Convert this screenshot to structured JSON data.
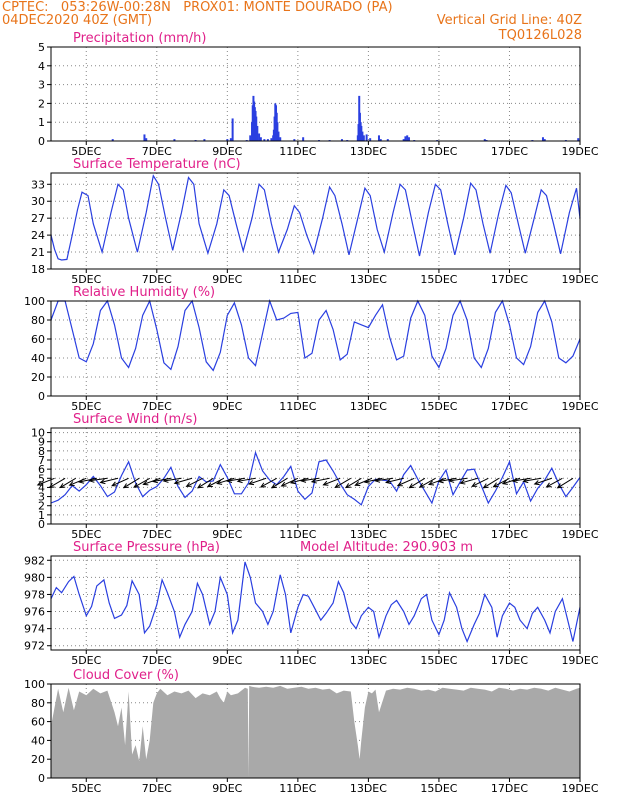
{
  "header": {
    "line1_left": "CPTEC:   053:26W-00:28N   PROX01: MONTE DOURADO (PA)",
    "line2_left": "04DEC2020 40Z (GMT)",
    "line2_right": "Vertical Grid Line: 40Z",
    "line3_right": "TQ0126L028"
  },
  "colors": {
    "header": "#e8741a",
    "title": "#e0208a",
    "series": "#2a3fe0",
    "cloud": "#a9a9a9",
    "wind_arrow": "#000000"
  },
  "time_axis": {
    "start": "04DEC2020 00Z",
    "end": "19DEC2020 00Z",
    "tick_labels": [
      "5DEC",
      "7DEC",
      "9DEC",
      "11DEC",
      "13DEC",
      "15DEC",
      "17DEC",
      "19DEC"
    ],
    "tick_days": [
      5,
      7,
      9,
      11,
      13,
      15,
      17,
      19
    ]
  },
  "model_altitude_text": "Model Altitude: 290.903 m",
  "chart_data": [
    {
      "type": "bar",
      "title": "Precipitation (mm/h)",
      "ylim": [
        0,
        5
      ],
      "yticks": [
        0,
        1,
        2,
        3,
        4,
        5
      ],
      "grid": true,
      "points": [
        [
          5.75,
          0.1
        ],
        [
          6.65,
          0.35
        ],
        [
          6.7,
          0.15
        ],
        [
          7.5,
          0.1
        ],
        [
          8.1,
          0.05
        ],
        [
          8.35,
          0.1
        ],
        [
          9.0,
          0.1
        ],
        [
          9.1,
          0.15
        ],
        [
          9.15,
          1.2
        ],
        [
          9.55,
          0.05
        ],
        [
          9.65,
          0.3
        ],
        [
          9.7,
          1.0
        ],
        [
          9.72,
          1.9
        ],
        [
          9.74,
          2.4
        ],
        [
          9.76,
          2.1
        ],
        [
          9.78,
          1.8
        ],
        [
          9.8,
          1.6
        ],
        [
          9.82,
          1.3
        ],
        [
          9.85,
          0.8
        ],
        [
          9.9,
          0.4
        ],
        [
          9.95,
          0.2
        ],
        [
          10.05,
          0.1
        ],
        [
          10.15,
          0.1
        ],
        [
          10.25,
          0.15
        ],
        [
          10.3,
          0.3
        ],
        [
          10.32,
          0.6
        ],
        [
          10.34,
          1.3
        ],
        [
          10.36,
          2.0
        ],
        [
          10.38,
          1.9
        ],
        [
          10.4,
          1.5
        ],
        [
          10.42,
          1.0
        ],
        [
          10.45,
          0.5
        ],
        [
          10.5,
          0.2
        ],
        [
          10.9,
          0.1
        ],
        [
          11.15,
          0.2
        ],
        [
          11.6,
          0.05
        ],
        [
          11.9,
          0.05
        ],
        [
          12.25,
          0.1
        ],
        [
          12.4,
          0.05
        ],
        [
          12.7,
          0.3
        ],
        [
          12.72,
          0.9
        ],
        [
          12.74,
          2.4
        ],
        [
          12.76,
          1.5
        ],
        [
          12.78,
          1.0
        ],
        [
          12.8,
          0.8
        ],
        [
          12.83,
          0.5
        ],
        [
          12.87,
          0.3
        ],
        [
          12.95,
          0.35
        ],
        [
          13.05,
          0.15
        ],
        [
          13.3,
          0.3
        ],
        [
          13.35,
          0.1
        ],
        [
          13.55,
          0.1
        ],
        [
          14.0,
          0.1
        ],
        [
          14.05,
          0.25
        ],
        [
          14.1,
          0.3
        ],
        [
          14.15,
          0.2
        ],
        [
          14.3,
          0.05
        ],
        [
          14.95,
          0.05
        ],
        [
          16.3,
          0.1
        ],
        [
          16.35,
          0.05
        ],
        [
          17.65,
          0.05
        ],
        [
          17.95,
          0.2
        ],
        [
          18.0,
          0.1
        ],
        [
          18.6,
          0.05
        ],
        [
          18.95,
          0.15
        ]
      ]
    },
    {
      "type": "line",
      "title": "Surface Temperature (nC)",
      "ylim": [
        18,
        35
      ],
      "yticks": [
        18,
        21,
        24,
        27,
        30,
        33
      ],
      "grid": true,
      "x": [
        4.0,
        4.1,
        4.2,
        4.3,
        4.45,
        4.6,
        4.75,
        4.88,
        5.05,
        5.2,
        5.45,
        5.7,
        5.9,
        6.05,
        6.2,
        6.45,
        6.7,
        6.9,
        7.05,
        7.25,
        7.45,
        7.7,
        7.9,
        8.05,
        8.2,
        8.45,
        8.7,
        8.9,
        9.05,
        9.25,
        9.45,
        9.7,
        9.9,
        10.05,
        10.25,
        10.45,
        10.7,
        10.9,
        11.05,
        11.25,
        11.45,
        11.7,
        11.9,
        12.05,
        12.25,
        12.45,
        12.7,
        12.9,
        13.05,
        13.25,
        13.45,
        13.7,
        13.9,
        14.05,
        14.25,
        14.45,
        14.7,
        14.9,
        15.05,
        15.25,
        15.45,
        15.7,
        15.9,
        16.05,
        16.25,
        16.45,
        16.7,
        16.9,
        17.05,
        17.25,
        17.45,
        17.7,
        17.9,
        18.05,
        18.25,
        18.45,
        18.7,
        18.9,
        19.0
      ],
      "y": [
        24.0,
        21.5,
        19.8,
        19.6,
        19.7,
        24,
        28.5,
        31.6,
        31.0,
        26,
        21.0,
        28,
        33.0,
        32.0,
        27,
        21.0,
        28,
        34.5,
        33.0,
        27,
        21.3,
        28,
        34.2,
        33.0,
        26,
        20.8,
        26,
        32.0,
        31.0,
        26,
        21.2,
        27,
        33.0,
        32.0,
        26,
        21.0,
        25,
        29.2,
        28.0,
        24,
        20.8,
        27,
        32.5,
        31.0,
        26,
        20.5,
        27,
        32.3,
        31.0,
        25,
        21.0,
        28,
        33.0,
        32.0,
        26,
        20.3,
        28,
        33.0,
        32.0,
        26,
        20.5,
        27,
        33.2,
        32.0,
        26,
        20.8,
        28,
        32.8,
        31.5,
        26,
        20.8,
        27,
        32.0,
        31.0,
        26,
        20.7,
        28,
        32.3,
        27.0
      ]
    },
    {
      "type": "line",
      "title": "Relative Humidity (%)",
      "ylim": [
        0,
        100
      ],
      "yticks": [
        0,
        20,
        40,
        60,
        80,
        100
      ],
      "grid": true,
      "x": [
        4.0,
        4.2,
        4.4,
        4.6,
        4.8,
        5.0,
        5.2,
        5.4,
        5.6,
        5.8,
        6.0,
        6.2,
        6.4,
        6.6,
        6.8,
        7.0,
        7.2,
        7.4,
        7.6,
        7.8,
        8.0,
        8.2,
        8.4,
        8.6,
        8.8,
        9.0,
        9.2,
        9.4,
        9.6,
        9.8,
        10.0,
        10.2,
        10.4,
        10.6,
        10.8,
        11.0,
        11.2,
        11.4,
        11.6,
        11.8,
        12.0,
        12.2,
        12.4,
        12.6,
        12.8,
        13.0,
        13.2,
        13.4,
        13.6,
        13.8,
        14.0,
        14.2,
        14.4,
        14.6,
        14.8,
        15.0,
        15.2,
        15.4,
        15.6,
        15.8,
        16.0,
        16.2,
        16.4,
        16.6,
        16.8,
        17.0,
        17.2,
        17.4,
        17.6,
        17.8,
        18.0,
        18.2,
        18.4,
        18.6,
        18.8,
        19.0
      ],
      "y": [
        80,
        100,
        100,
        70,
        40,
        36,
        55,
        90,
        100,
        75,
        40,
        30,
        50,
        85,
        100,
        70,
        35,
        28,
        52,
        90,
        100,
        72,
        36,
        27,
        46,
        85,
        98,
        75,
        40,
        32,
        66,
        100,
        80,
        82,
        87,
        88,
        40,
        45,
        80,
        90,
        70,
        38,
        44,
        78,
        75,
        72,
        85,
        96,
        62,
        38,
        42,
        82,
        100,
        85,
        42,
        30,
        50,
        85,
        100,
        80,
        40,
        30,
        50,
        88,
        100,
        75,
        40,
        33,
        52,
        88,
        100,
        78,
        40,
        35,
        42,
        60
      ]
    },
    {
      "type": "line",
      "title": "Surface Wind (m/s)",
      "ylim": [
        0,
        10.5
      ],
      "yticks": [
        0,
        1,
        2,
        3,
        4,
        5,
        6,
        7,
        8,
        9,
        10
      ],
      "grid": true,
      "wind_arrows": true,
      "x": [
        4.0,
        4.2,
        4.4,
        4.6,
        4.8,
        5.0,
        5.2,
        5.4,
        5.6,
        5.8,
        6.0,
        6.2,
        6.4,
        6.6,
        6.8,
        7.0,
        7.2,
        7.4,
        7.6,
        7.8,
        8.0,
        8.2,
        8.4,
        8.6,
        8.8,
        9.0,
        9.2,
        9.4,
        9.6,
        9.8,
        10.0,
        10.2,
        10.4,
        10.6,
        10.8,
        11.0,
        11.2,
        11.4,
        11.6,
        11.8,
        12.0,
        12.2,
        12.4,
        12.6,
        12.8,
        13.0,
        13.2,
        13.4,
        13.6,
        13.8,
        14.0,
        14.2,
        14.4,
        14.6,
        14.8,
        15.0,
        15.2,
        15.4,
        15.6,
        15.8,
        16.0,
        16.2,
        16.4,
        16.6,
        16.8,
        17.0,
        17.2,
        17.4,
        17.6,
        17.8,
        18.0,
        18.2,
        18.4,
        18.6,
        18.8,
        19.0
      ],
      "y": [
        2.3,
        2.6,
        3.2,
        4.2,
        3.6,
        4.3,
        5.2,
        4.2,
        3.0,
        3.5,
        5.3,
        6.8,
        4.5,
        3.0,
        3.7,
        4.1,
        5.0,
        6.2,
        4.1,
        2.9,
        3.6,
        5.2,
        4.6,
        4.7,
        6.5,
        5.1,
        3.3,
        3.3,
        4.5,
        7.8,
        5.8,
        4.8,
        4.3,
        5.2,
        6.3,
        3.6,
        2.7,
        3.4,
        6.8,
        7.0,
        5.8,
        4.4,
        3.2,
        2.7,
        2.1,
        4.1,
        4.9,
        4.8,
        4.7,
        3.6,
        5.4,
        6.4,
        4.9,
        3.6,
        2.3,
        4.7,
        5.9,
        3.2,
        4.6,
        5.9,
        6.0,
        4.2,
        2.3,
        3.6,
        5.1,
        6.8,
        3.3,
        4.6,
        2.5,
        3.9,
        4.8,
        6.1,
        4.4,
        3.0,
        4.0,
        5.1
      ]
    },
    {
      "type": "line",
      "title": "Surface Pressure (hPa)",
      "ylim": [
        971.5,
        982.5
      ],
      "yticks": [
        972,
        974,
        976,
        978,
        980,
        982
      ],
      "grid": true,
      "x": [
        4.0,
        4.15,
        4.3,
        4.5,
        4.65,
        4.8,
        5.0,
        5.15,
        5.3,
        5.5,
        5.65,
        5.8,
        6.0,
        6.15,
        6.3,
        6.5,
        6.65,
        6.8,
        7.0,
        7.15,
        7.3,
        7.5,
        7.65,
        7.8,
        8.0,
        8.15,
        8.3,
        8.5,
        8.65,
        8.8,
        9.0,
        9.15,
        9.3,
        9.5,
        9.65,
        9.8,
        10.0,
        10.15,
        10.3,
        10.5,
        10.65,
        10.8,
        11.0,
        11.15,
        11.3,
        11.5,
        11.65,
        11.8,
        12.0,
        12.15,
        12.3,
        12.5,
        12.65,
        12.8,
        13.0,
        13.15,
        13.3,
        13.5,
        13.65,
        13.8,
        14.0,
        14.15,
        14.3,
        14.5,
        14.65,
        14.8,
        15.0,
        15.15,
        15.3,
        15.5,
        15.65,
        15.8,
        16.0,
        16.15,
        16.3,
        16.5,
        16.65,
        16.8,
        17.0,
        17.15,
        17.3,
        17.5,
        17.65,
        17.8,
        18.0,
        18.15,
        18.3,
        18.5,
        18.65,
        18.8,
        19.0
      ],
      "y": [
        977.5,
        978.8,
        978.2,
        979.5,
        980.1,
        978.0,
        975.5,
        976.6,
        979.0,
        979.7,
        977.0,
        975.2,
        975.6,
        976.7,
        979.6,
        978.0,
        973.5,
        974.3,
        976.8,
        979.7,
        978.2,
        976.0,
        973.0,
        974.5,
        976.0,
        979.3,
        978.0,
        974.5,
        976.0,
        980.0,
        978.0,
        973.5,
        975.0,
        981.8,
        980.0,
        977.0,
        976.0,
        974.5,
        976.0,
        980.3,
        978.0,
        973.5,
        976.5,
        978.0,
        977.8,
        976.2,
        975.0,
        975.8,
        977.0,
        979.5,
        978.2,
        974.8,
        974.0,
        975.5,
        976.5,
        976.0,
        973.0,
        975.5,
        976.8,
        977.3,
        976.0,
        974.5,
        975.5,
        977.5,
        978.0,
        975.0,
        973.3,
        975.0,
        978.2,
        976.5,
        974.0,
        972.5,
        974.5,
        975.8,
        978.0,
        976.5,
        973.0,
        975.5,
        977.0,
        976.5,
        975.0,
        974.0,
        975.8,
        976.5,
        975.0,
        973.5,
        976.0,
        977.5,
        975.0,
        972.5,
        976.5
      ]
    },
    {
      "type": "area",
      "title": "Cloud Cover (%)",
      "ylim": [
        0,
        100
      ],
      "yticks": [
        0,
        20,
        40,
        60,
        80,
        100
      ],
      "grid": true,
      "x": [
        4.0,
        4.2,
        4.35,
        4.5,
        4.65,
        4.8,
        5.0,
        5.2,
        5.4,
        5.6,
        5.8,
        5.9,
        6.0,
        6.1,
        6.2,
        6.3,
        6.4,
        6.5,
        6.6,
        6.7,
        6.8,
        6.9,
        7.0,
        7.1,
        7.3,
        7.5,
        7.7,
        7.9,
        8.1,
        8.3,
        8.5,
        8.7,
        8.8,
        8.9,
        9.0,
        9.1,
        9.3,
        9.5,
        9.58,
        9.6,
        9.62,
        9.7,
        9.9,
        10.1,
        10.3,
        10.5,
        10.7,
        10.9,
        11.1,
        11.3,
        11.5,
        11.7,
        11.9,
        12.1,
        12.3,
        12.5,
        12.6,
        12.7,
        12.75,
        12.8,
        12.9,
        13.0,
        13.1,
        13.2,
        13.3,
        13.5,
        13.7,
        13.9,
        14.1,
        14.3,
        14.5,
        14.7,
        14.9,
        15.1,
        15.3,
        15.5,
        15.7,
        15.9,
        16.1,
        16.3,
        16.5,
        16.7,
        16.9,
        17.1,
        17.3,
        17.5,
        17.7,
        17.9,
        18.1,
        18.3,
        18.5,
        18.7,
        18.9,
        19.0
      ],
      "y": [
        55,
        95,
        70,
        96,
        72,
        92,
        88,
        95,
        90,
        93,
        70,
        55,
        75,
        35,
        92,
        25,
        35,
        18,
        55,
        20,
        40,
        80,
        90,
        95,
        88,
        92,
        90,
        93,
        85,
        90,
        88,
        92,
        85,
        80,
        92,
        88,
        90,
        96,
        95,
        0,
        98,
        97,
        96,
        97,
        96,
        98,
        95,
        96,
        97,
        95,
        96,
        94,
        95,
        90,
        93,
        92,
        60,
        35,
        20,
        40,
        75,
        92,
        90,
        94,
        70,
        93,
        95,
        94,
        96,
        95,
        93,
        94,
        92,
        96,
        95,
        94,
        93,
        96,
        95,
        94,
        92,
        96,
        95,
        93,
        95,
        94,
        96,
        95,
        93,
        96,
        94,
        92,
        95,
        96
      ]
    }
  ]
}
